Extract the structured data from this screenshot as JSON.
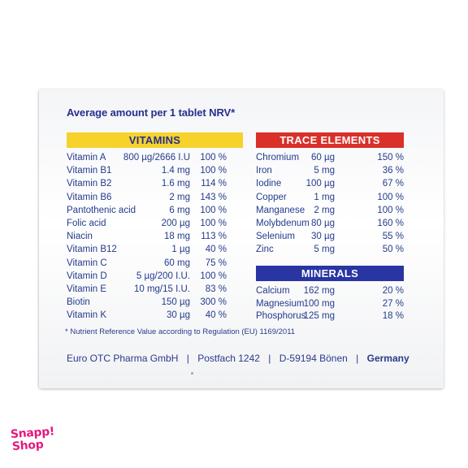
{
  "heading": "Average amount per 1 tablet NRV*",
  "vitamins": {
    "title": "VITAMINS",
    "rows": [
      {
        "name": "Vitamin A",
        "amount": "800 µg/2666 I.U",
        "nrv": "100 %"
      },
      {
        "name": "Vitamin B1",
        "amount": "1.4 mg",
        "nrv": "100 %"
      },
      {
        "name": "Vitamin B2",
        "amount": "1.6 mg",
        "nrv": "114 %"
      },
      {
        "name": "Vitamin B6",
        "amount": "2 mg",
        "nrv": "143 %"
      },
      {
        "name": "Pantothenic acid",
        "amount": "6 mg",
        "nrv": "100 %"
      },
      {
        "name": "Folic acid",
        "amount": "200 µg",
        "nrv": "100 %"
      },
      {
        "name": "Niacin",
        "amount": "18 mg",
        "nrv": "113 %"
      },
      {
        "name": "Vitamin B12",
        "amount": "1 µg",
        "nrv": "40 %"
      },
      {
        "name": "Vitamin C",
        "amount": "60 mg",
        "nrv": "75 %"
      },
      {
        "name": "Vitamin D",
        "amount": "5 µg/200 I.U.",
        "nrv": "100 %"
      },
      {
        "name": "Vitamin E",
        "amount": "10 mg/15 I.U.",
        "nrv": "83 %"
      },
      {
        "name": "Biotin",
        "amount": "150 µg",
        "nrv": "300 %"
      },
      {
        "name": "Vitamin K",
        "amount": "30 µg",
        "nrv": "40 %"
      }
    ]
  },
  "trace": {
    "title": "TRACE ELEMENTS",
    "rows": [
      {
        "name": "Chromium",
        "amount": "60 µg",
        "nrv": "150 %"
      },
      {
        "name": "Iron",
        "amount": "5 mg",
        "nrv": "36 %"
      },
      {
        "name": "Iodine",
        "amount": "100 µg",
        "nrv": "67 %"
      },
      {
        "name": "Copper",
        "amount": "1 mg",
        "nrv": "100 %"
      },
      {
        "name": "Manganese",
        "amount": "2 mg",
        "nrv": "100 %"
      },
      {
        "name": "Molybdenum",
        "amount": "80 µg",
        "nrv": "160 %"
      },
      {
        "name": "Selenium",
        "amount": "30 µg",
        "nrv": "55 %"
      },
      {
        "name": "Zinc",
        "amount": "5 mg",
        "nrv": "50 %"
      }
    ]
  },
  "minerals": {
    "title": "MINERALS",
    "rows": [
      {
        "name": "Calcium",
        "amount": "162 mg",
        "nrv": "20 %"
      },
      {
        "name": "Magnesium",
        "amount": "100 mg",
        "nrv": "27 %"
      },
      {
        "name": "Phosphorus",
        "amount": "125 mg",
        "nrv": "18 %"
      }
    ]
  },
  "footnote": "*  Nutrient Reference Value according to Regulation (EU) 1169/2011",
  "footer": {
    "company": "Euro OTC Pharma GmbH",
    "postfach": "Postfach 1242",
    "city": "D-59194 Bönen",
    "country": "Germany",
    "separator": "|"
  },
  "logo": {
    "line1": "Snapp!",
    "line2": "Shop"
  },
  "colors": {
    "navy": "#25308f",
    "yellow": "#f6d22a",
    "red": "#d9302a",
    "blue": "#2835a3",
    "pink": "#e5177f"
  }
}
